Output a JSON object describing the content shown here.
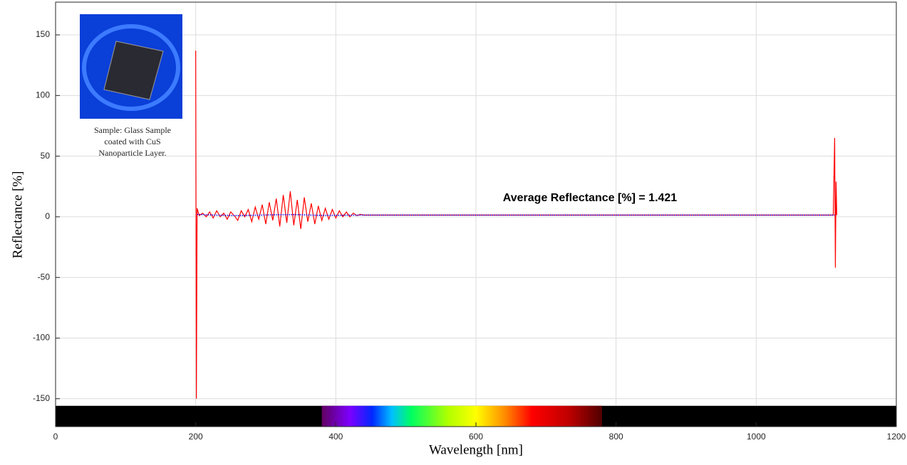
{
  "chart_data": {
    "type": "line",
    "xlabel": "Wavelength [nm]",
    "ylabel": "Reflectance [%]",
    "annotation": "Average Reflectance [%] = 1.421",
    "inset_caption": [
      "Sample: Glass Sample",
      "coated with CuS",
      "Nanoparticle Layer."
    ],
    "xlim": [
      0,
      1200
    ],
    "ylim": [
      -173,
      177
    ],
    "xticks": [
      0,
      200,
      400,
      600,
      800,
      1000,
      1200
    ],
    "yticks": [
      -150,
      -100,
      -50,
      0,
      50,
      100,
      150
    ],
    "grid": true,
    "visible_spectrum": [
      380,
      780
    ],
    "series": [
      {
        "color": "#ff0000",
        "x": [
          200,
          201,
          202,
          205,
          210,
          215,
          220,
          225,
          230,
          235,
          240,
          245,
          250,
          255,
          260,
          265,
          270,
          275,
          280,
          285,
          290,
          295,
          300,
          305,
          310,
          315,
          320,
          325,
          330,
          335,
          340,
          345,
          350,
          355,
          360,
          365,
          370,
          375,
          380,
          385,
          390,
          395,
          400,
          405,
          410,
          415,
          420,
          425,
          430,
          435,
          440,
          600,
          800,
          1000,
          1110,
          1112,
          1113,
          1114,
          1115
        ],
        "values": [
          137,
          -150,
          7,
          1,
          3,
          0,
          4,
          -1,
          5,
          0,
          3,
          -2,
          4,
          1,
          -3,
          5,
          0,
          6,
          -4,
          8,
          -2,
          10,
          -6,
          12,
          -3,
          15,
          -8,
          18,
          -5,
          21,
          -7,
          14,
          -10,
          16,
          -4,
          11,
          -6,
          9,
          -3,
          7,
          -2,
          6,
          -1,
          5,
          0,
          4,
          0,
          3,
          1,
          2,
          1.4,
          1.4,
          1.4,
          1.4,
          1.4,
          65,
          -42,
          29,
          1.4
        ]
      },
      {
        "color": "#0000ff",
        "x": [
          202,
          220,
          260,
          300,
          340,
          380,
          440,
          700,
          1112
        ],
        "values": [
          2,
          1.5,
          1,
          1.5,
          1.8,
          1.2,
          1.4,
          1.4,
          1.4
        ]
      }
    ]
  }
}
